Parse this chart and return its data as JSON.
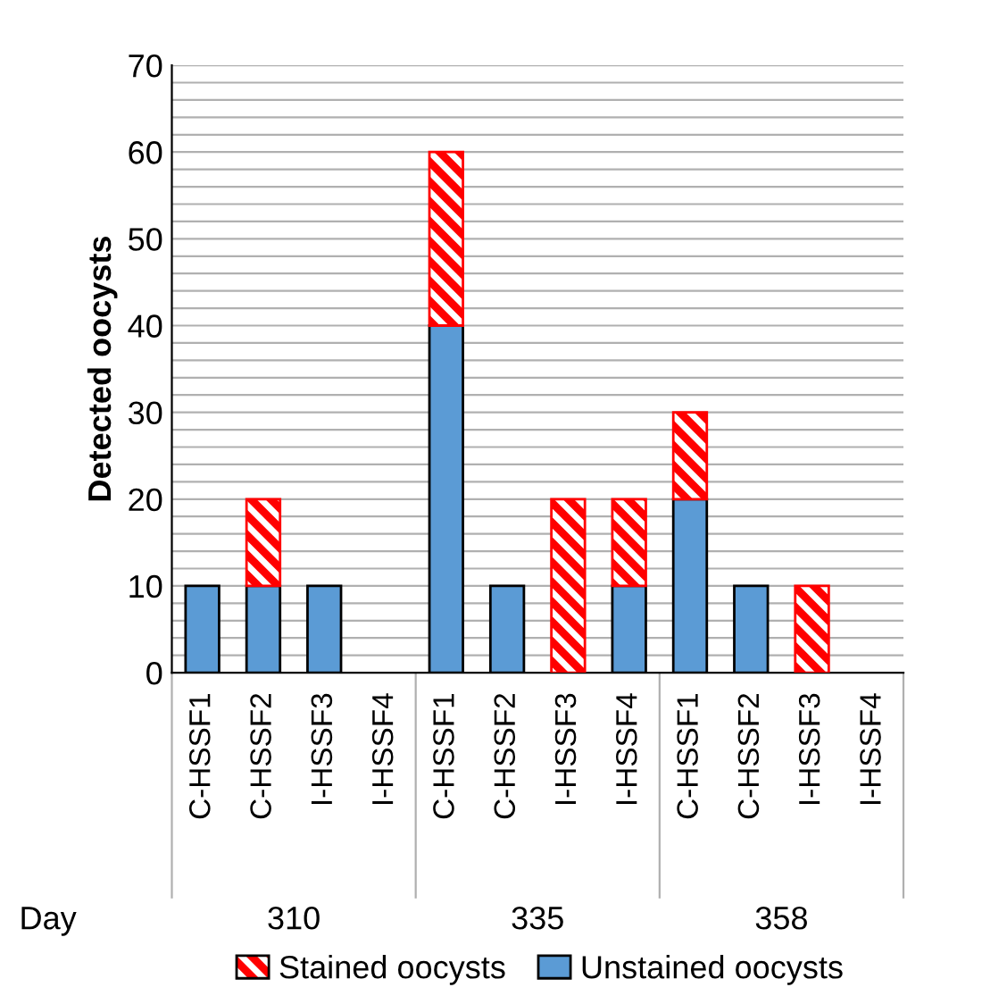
{
  "chart_data": {
    "type": "bar",
    "stacked": true,
    "ylabel": "Detected oocysts",
    "xlabel": "Day",
    "categories": [
      "C-HSSF1",
      "C-HSSF2",
      "I-HSSF3",
      "I-HSSF4",
      "C-HSSF1",
      "C-HSSF2",
      "I-HSSF3",
      "I-HSSF4",
      "C-HSSF1",
      "C-HSSF2",
      "I-HSSF3",
      "I-HSSF4"
    ],
    "series": [
      {
        "name": "Unstained oocysts",
        "color": "#5b9bd5",
        "values": [
          10,
          10,
          10,
          null,
          40,
          10,
          null,
          10,
          20,
          10,
          null,
          null
        ]
      },
      {
        "name": "Stained oocysts",
        "color": "#ff0000",
        "values": [
          null,
          10,
          null,
          null,
          20,
          null,
          20,
          10,
          10,
          null,
          10,
          null
        ]
      }
    ],
    "annotations": [
      "310",
      "335",
      "358"
    ],
    "ylim": [
      0,
      70
    ],
    "yticks": [
      0,
      {
        "value": 2,
        "label": null
      },
      {
        "value": 4,
        "label": null
      },
      {
        "value": 6,
        "label": null
      },
      {
        "value": 8,
        "label": null
      },
      10,
      {
        "value": 12,
        "label": null
      },
      {
        "value": 14,
        "label": null
      },
      {
        "value": 16,
        "label": null
      },
      {
        "value": 18,
        "label": null
      },
      20,
      {
        "value": 22,
        "label": null
      },
      {
        "value": 24,
        "label": null
      },
      {
        "value": 26,
        "label": null
      },
      {
        "value": 28,
        "label": null
      },
      30,
      {
        "value": 32,
        "label": null
      },
      {
        "value": 34,
        "label": null
      },
      {
        "value": 36,
        "label": null
      },
      {
        "value": 38,
        "label": null
      },
      40,
      {
        "value": 42,
        "label": null
      },
      {
        "value": 44,
        "label": null
      },
      {
        "value": 46,
        "label": null
      },
      {
        "value": 48,
        "label": null
      },
      50,
      {
        "value": 52,
        "label": null
      },
      {
        "value": 54,
        "label": null
      },
      {
        "value": 56,
        "label": null
      },
      {
        "value": 58,
        "label": null
      },
      60,
      {
        "value": 62,
        "label": null
      },
      {
        "value": 64,
        "label": null
      },
      {
        "value": 66,
        "label": null
      },
      {
        "value": 68,
        "label": null
      },
      70
    ],
    "grid": "y",
    "legend": "bottom"
  }
}
